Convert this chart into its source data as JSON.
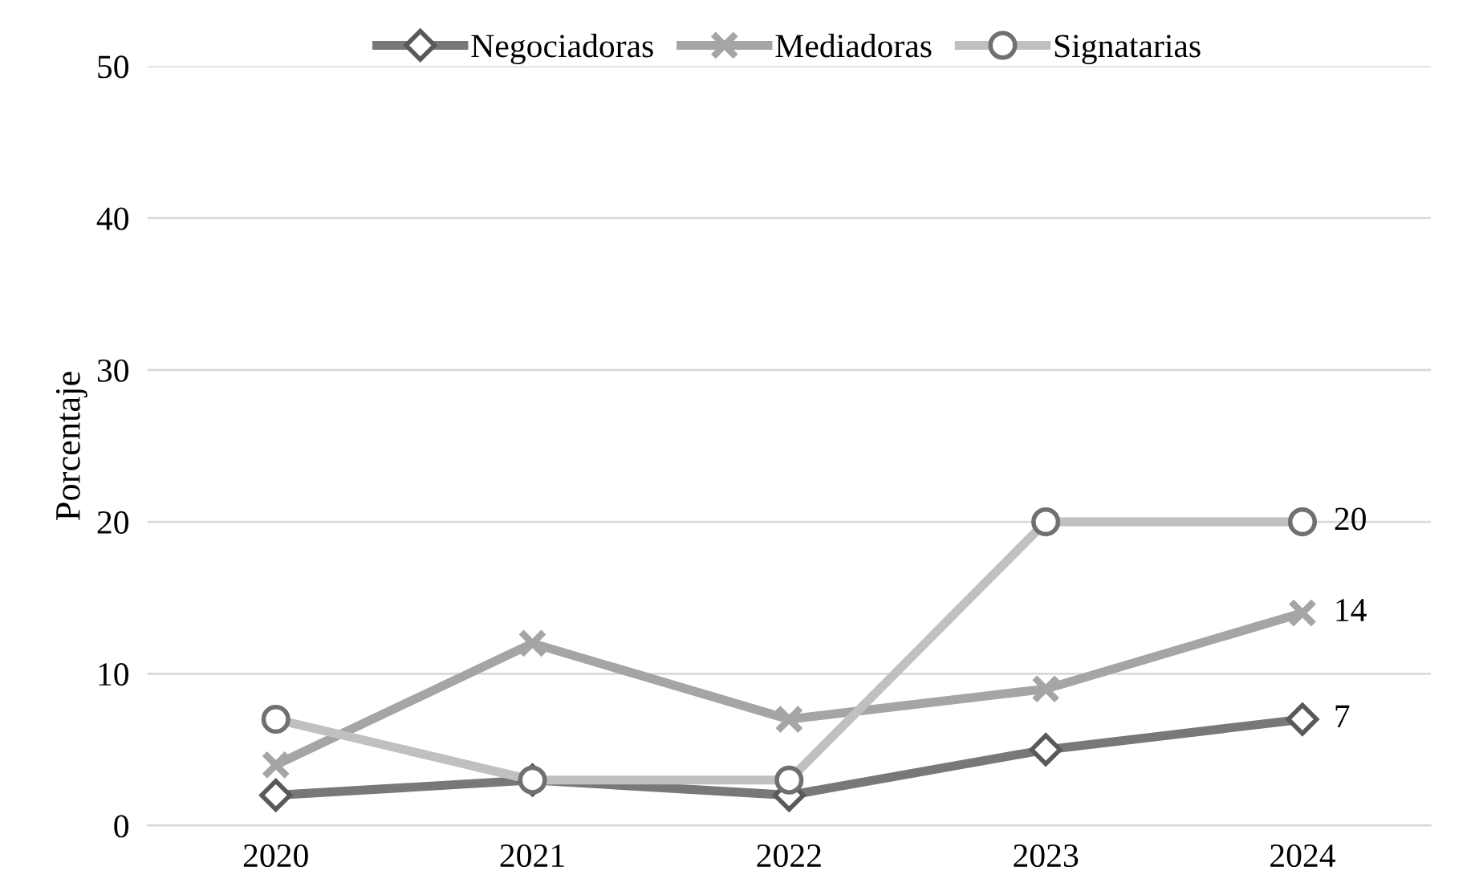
{
  "chart_data": {
    "type": "line",
    "ylabel": "Porcentaje",
    "categories": [
      "2020",
      "2021",
      "2022",
      "2023",
      "2024"
    ],
    "series": [
      {
        "name": "Negociadoras",
        "color": "#787878",
        "marker": "diamond",
        "values": [
          2,
          3,
          2,
          5,
          7
        ],
        "value_labels": [
          null,
          null,
          null,
          null,
          "7"
        ]
      },
      {
        "name": "Mediadoras",
        "color": "#a5a5a5",
        "marker": "cross",
        "values": [
          4,
          12,
          7,
          9,
          14
        ],
        "value_labels": [
          null,
          null,
          null,
          null,
          "14"
        ]
      },
      {
        "name": "Signatarias",
        "color": "#c0c0c0",
        "marker": "circle",
        "values": [
          7,
          3,
          3,
          20,
          20
        ],
        "value_labels": [
          null,
          null,
          null,
          null,
          "20"
        ]
      }
    ],
    "ylim": [
      0,
      50
    ],
    "yticks": [
      0,
      10,
      20,
      30,
      40,
      50
    ],
    "grid": "y",
    "legend": "top",
    "line_style": "solid"
  }
}
